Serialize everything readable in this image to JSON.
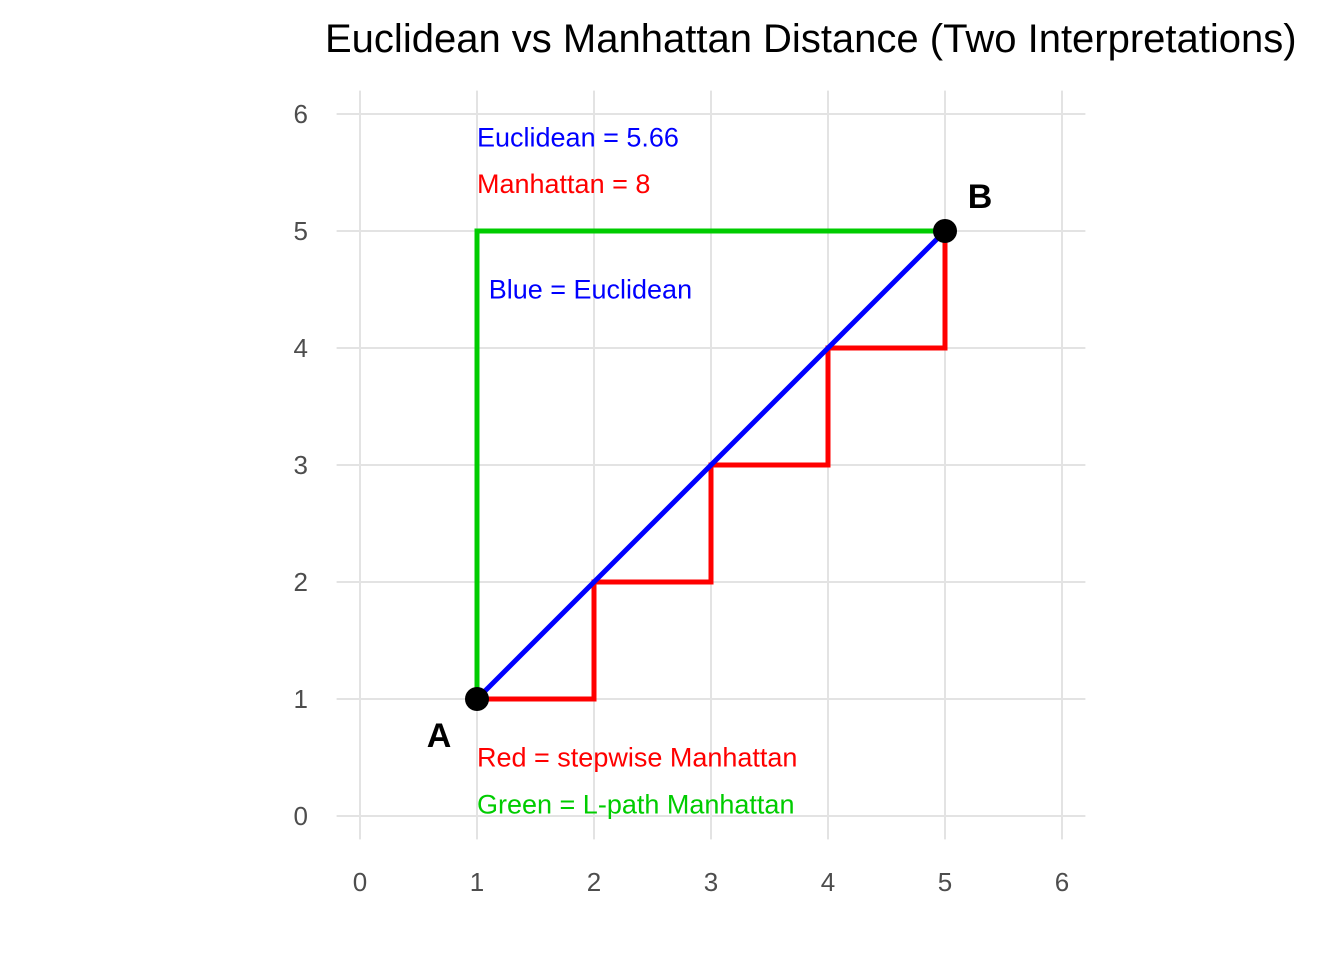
{
  "chart_data": {
    "type": "line",
    "title": "Euclidean vs Manhattan Distance (Two Interpretations)",
    "xlabel": "",
    "ylabel": "",
    "xlim": [
      -0.2,
      6.2
    ],
    "ylim": [
      -0.2,
      6.2
    ],
    "x_ticks": [
      0,
      1,
      2,
      3,
      4,
      5,
      6
    ],
    "y_ticks": [
      0,
      1,
      2,
      3,
      4,
      5,
      6
    ],
    "grid": true,
    "series": [
      {
        "key": "euclidean",
        "color": "#0000ff",
        "x": [
          1,
          5
        ],
        "y": [
          1,
          5
        ]
      },
      {
        "key": "stepwise",
        "color": "#ff0000",
        "x": [
          1,
          2,
          2,
          3,
          3,
          4,
          4,
          5,
          5
        ],
        "y": [
          1,
          1,
          2,
          2,
          3,
          3,
          4,
          4,
          5
        ]
      },
      {
        "key": "lpath",
        "color": "#00cc00",
        "x": [
          1,
          1,
          5
        ],
        "y": [
          1,
          5,
          5
        ]
      }
    ],
    "points": [
      {
        "label": "A",
        "x": 1,
        "y": 1
      },
      {
        "label": "B",
        "x": 5,
        "y": 5
      }
    ],
    "annotations": [
      {
        "text": "Euclidean = 5.66",
        "color": "#0000ff",
        "x": 1,
        "y": 5.8
      },
      {
        "text": "Manhattan = 8",
        "color": "#ff0000",
        "x": 1,
        "y": 5.4
      },
      {
        "text": "Blue = Euclidean",
        "color": "#0000ff",
        "x": 1.1,
        "y": 4.5
      },
      {
        "text": "Red = stepwise Manhattan",
        "color": "#ff0000",
        "x": 1,
        "y": 0.5
      },
      {
        "text": "Green = L-path Manhattan",
        "color": "#00cc00",
        "x": 1,
        "y": 0.1
      }
    ]
  }
}
